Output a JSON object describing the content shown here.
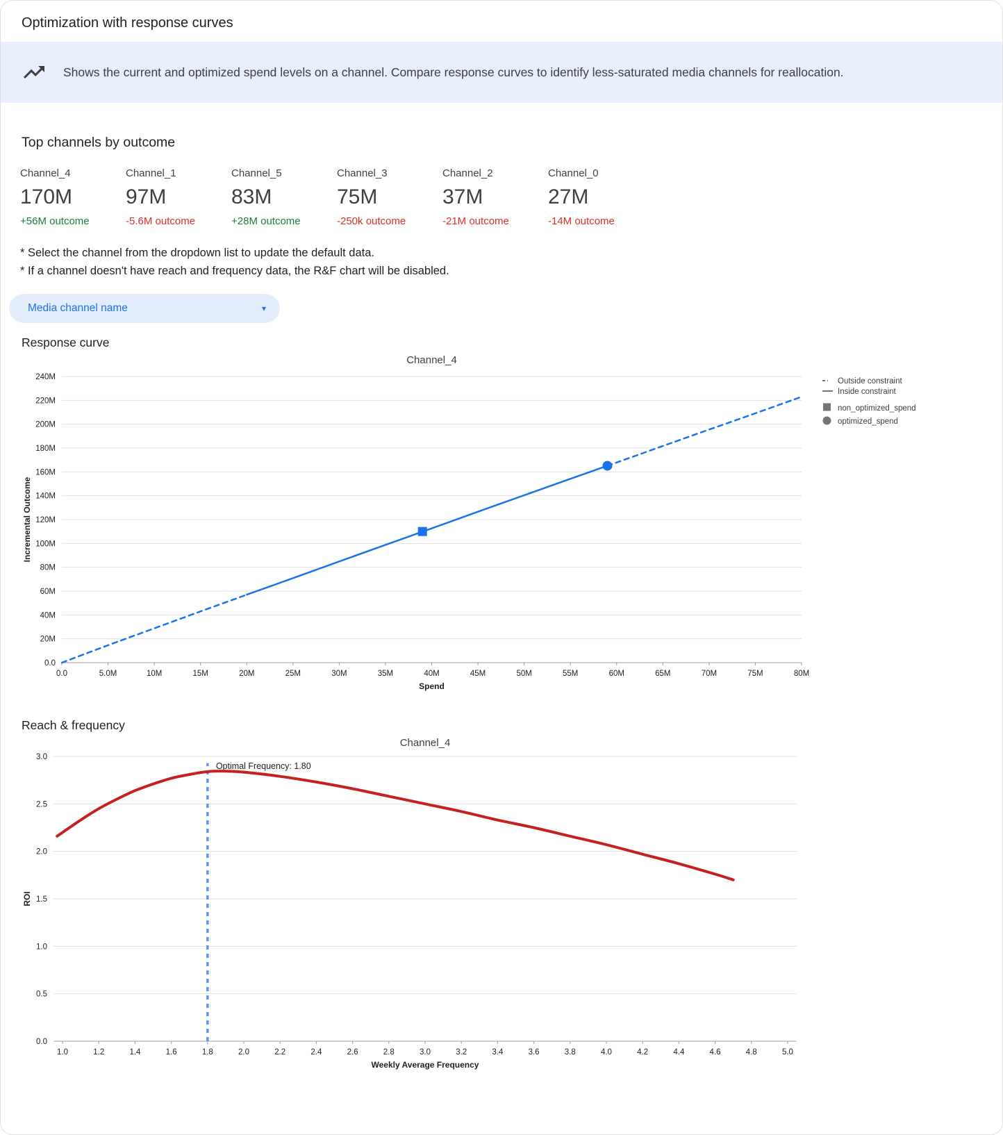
{
  "header": {
    "title": "Optimization with response curves"
  },
  "banner": {
    "icon": "trending-up-icon",
    "text": "Shows the current and optimized spend levels on a channel. Compare response curves to identify less-saturated media channels for reallocation."
  },
  "top_channels": {
    "title": "Top channels by outcome",
    "channels": [
      {
        "name": "Channel_4",
        "value": "170M",
        "delta": "+56M outcome",
        "direction": "up"
      },
      {
        "name": "Channel_1",
        "value": "97M",
        "delta": "-5.6M outcome",
        "direction": "down"
      },
      {
        "name": "Channel_5",
        "value": "83M",
        "delta": "+28M outcome",
        "direction": "up"
      },
      {
        "name": "Channel_3",
        "value": "75M",
        "delta": "-250k outcome",
        "direction": "down"
      },
      {
        "name": "Channel_2",
        "value": "37M",
        "delta": "-21M outcome",
        "direction": "down"
      },
      {
        "name": "Channel_0",
        "value": "27M",
        "delta": "-14M outcome",
        "direction": "down"
      }
    ]
  },
  "notes": [
    "* Select the channel from the dropdown list to update the default data.",
    "* If a channel doesn't have reach and frequency data, the R&F chart will be disabled."
  ],
  "dropdown": {
    "label": "Media channel name",
    "caret_icon": "▾"
  },
  "sections": {
    "response_curve": "Response curve",
    "reach_frequency": "Reach & frequency"
  },
  "colors": {
    "accent_blue": "#1a73e8",
    "positive_green": "#188038",
    "negative_red": "#d93025",
    "curve_red": "#c5221f",
    "banner_bg": "#e8eefb",
    "dropdown_bg": "#e4edfc",
    "vline_blue": "#5e97f6"
  },
  "chart_data": [
    {
      "type": "line",
      "title": "Channel_4",
      "xlabel": "Spend",
      "ylabel": "Incremental Outcome",
      "unit": "millions",
      "xlim": [
        0,
        80
      ],
      "ylim": [
        0,
        240
      ],
      "x_ticks": [
        0,
        5,
        10,
        15,
        20,
        25,
        30,
        35,
        40,
        45,
        50,
        55,
        60,
        65,
        70,
        75,
        80
      ],
      "x_tick_labels": [
        "0.0",
        "5.0M",
        "10M",
        "15M",
        "20M",
        "25M",
        "30M",
        "35M",
        "40M",
        "45M",
        "50M",
        "55M",
        "60M",
        "65M",
        "70M",
        "75M",
        "80M"
      ],
      "y_ticks": [
        0,
        20,
        40,
        60,
        80,
        100,
        120,
        140,
        160,
        180,
        200,
        220,
        240
      ],
      "y_tick_labels": [
        "0.0",
        "20M",
        "40M",
        "60M",
        "80M",
        "100M",
        "120M",
        "140M",
        "160M",
        "180M",
        "200M",
        "220M",
        "240M"
      ],
      "x": [
        0,
        5,
        10,
        15,
        20,
        25,
        30,
        35,
        40,
        45,
        50,
        55,
        59,
        65,
        70,
        75,
        80
      ],
      "y": [
        0,
        14.6,
        28.8,
        43.0,
        57.0,
        70.9,
        84.9,
        98.8,
        112.6,
        126.6,
        140.4,
        154.2,
        165.1,
        181.7,
        195.5,
        209.1,
        223.0
      ],
      "line_color": "#1a73e8",
      "line_width": 2.5,
      "segments": [
        {
          "from": 0,
          "to": 20,
          "dash": true
        },
        {
          "from": 20,
          "to": 59,
          "dash": false
        },
        {
          "from": 59,
          "to": 80,
          "dash": true
        }
      ],
      "markers": [
        {
          "shape": "square",
          "x": 39,
          "y": 110,
          "label": "non_optimized_spend"
        },
        {
          "shape": "circle",
          "x": 59,
          "y": 165.1,
          "label": "optimized_spend"
        }
      ],
      "legend_position": "right",
      "legend": [
        {
          "glyph": "dash",
          "label": "Outside constraint"
        },
        {
          "glyph": "line",
          "label": "Inside constraint"
        },
        {
          "glyph": "square",
          "label": "non_optimized_spend"
        },
        {
          "glyph": "circle",
          "label": "optimized_spend"
        }
      ],
      "grid": "horizontal"
    },
    {
      "type": "line",
      "title": "Channel_4",
      "xlabel": "Weekly Average Frequency",
      "ylabel": "ROI",
      "xlim": [
        0.95,
        5.05
      ],
      "ylim": [
        0,
        3.0
      ],
      "x_ticks": [
        1.0,
        1.2,
        1.4,
        1.6,
        1.8,
        2.0,
        2.2,
        2.4,
        2.6,
        2.8,
        3.0,
        3.2,
        3.4,
        3.6,
        3.8,
        4.0,
        4.2,
        4.4,
        4.6,
        4.8,
        5.0
      ],
      "x_tick_labels": [
        "1.0",
        "1.2",
        "1.4",
        "1.6",
        "1.8",
        "2.0",
        "2.2",
        "2.4",
        "2.6",
        "2.8",
        "3.0",
        "3.2",
        "3.4",
        "3.6",
        "3.8",
        "4.0",
        "4.2",
        "4.4",
        "4.6",
        "4.8",
        "5.0"
      ],
      "y_ticks": [
        0,
        0.5,
        1.0,
        1.5,
        2.0,
        2.5,
        3.0
      ],
      "y_tick_labels": [
        "0.0",
        "0.5",
        "1.0",
        "1.5",
        "2.0",
        "2.5",
        "3.0"
      ],
      "x": [
        0.97,
        1.1,
        1.2,
        1.3,
        1.4,
        1.5,
        1.6,
        1.7,
        1.8,
        1.9,
        2.0,
        2.2,
        2.4,
        2.6,
        2.8,
        3.0,
        3.2,
        3.4,
        3.6,
        3.8,
        4.0,
        4.2,
        4.4,
        4.6,
        4.7
      ],
      "y": [
        2.16,
        2.33,
        2.45,
        2.55,
        2.64,
        2.71,
        2.77,
        2.81,
        2.84,
        2.845,
        2.835,
        2.79,
        2.73,
        2.66,
        2.58,
        2.5,
        2.42,
        2.33,
        2.25,
        2.16,
        2.07,
        1.97,
        1.87,
        1.76,
        1.7
      ],
      "line_color": "#c5221f",
      "line_width": 4,
      "segments": [
        {
          "from": 0.9,
          "to": 4.75,
          "dash": false
        }
      ],
      "vline": {
        "x": 1.8,
        "top": 2.93,
        "color": "#5e97f6",
        "label": "Optimal Frequency: 1.80"
      },
      "grid": "horizontal"
    }
  ]
}
